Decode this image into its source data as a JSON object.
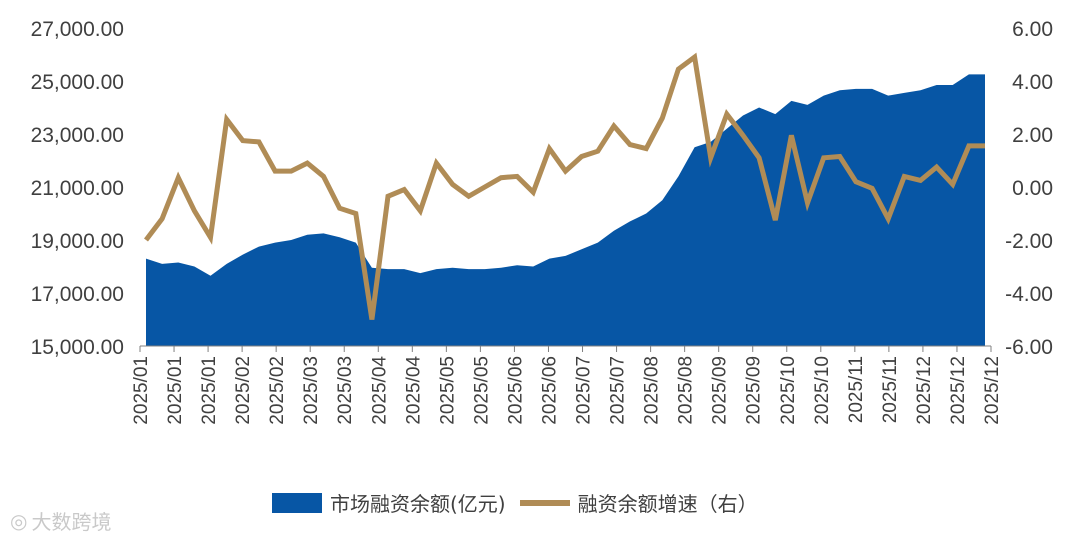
{
  "chart_data": {
    "type": "area+line",
    "colors": {
      "area": "#0756A5",
      "line": "#B08C56",
      "axis": "#808080",
      "text": "#404040"
    },
    "x_tick_labels": [
      "2025/01",
      "2025/01",
      "2025/01",
      "2025/02",
      "2025/02",
      "2025/03",
      "2025/03",
      "2025/04",
      "2025/04",
      "2025/05",
      "2025/05",
      "2025/06",
      "2025/06",
      "2025/07",
      "2025/07",
      "2025/08",
      "2025/08",
      "2025/09",
      "2025/09",
      "2025/10",
      "2025/10",
      "2025/11",
      "2025/11",
      "2025/12",
      "2025/12",
      "2025/12"
    ],
    "y_left": {
      "min": 15000,
      "max": 27000,
      "ticks": [
        "27,000.00",
        "25,000.00",
        "23,000.00",
        "21,000.00",
        "19,000.00",
        "17,000.00",
        "15,000.00"
      ]
    },
    "y_right": {
      "min": -6,
      "max": 6,
      "ticks": [
        "6.00",
        "4.00",
        "2.00",
        "0.00",
        "-2.00",
        "-4.00",
        "-6.00"
      ]
    },
    "series": [
      {
        "name": "市场融资余额(亿元)",
        "type": "area",
        "axis": "left",
        "values": [
          18300,
          18100,
          18150,
          18000,
          17650,
          18100,
          18450,
          18750,
          18900,
          19000,
          19200,
          19250,
          19100,
          18900,
          17950,
          17900,
          17900,
          17750,
          17900,
          17950,
          17900,
          17900,
          17950,
          18050,
          18000,
          18300,
          18400,
          18650,
          18900,
          19350,
          19700,
          20000,
          20500,
          21400,
          22500,
          22700,
          23200,
          23700,
          24000,
          23750,
          24250,
          24100,
          24450,
          24650,
          24700,
          24700,
          24450,
          24550,
          24650,
          24850,
          24850,
          25250,
          25250
        ]
      },
      {
        "name": "融资余额增速（右）",
        "type": "line",
        "axis": "right",
        "values": [
          -2.0,
          -1.2,
          0.35,
          -0.9,
          -1.9,
          2.55,
          1.75,
          1.7,
          0.6,
          0.6,
          0.9,
          0.4,
          -0.8,
          -1.0,
          -5.0,
          -0.35,
          -0.1,
          -0.9,
          0.9,
          0.1,
          -0.35,
          0.0,
          0.35,
          0.4,
          -0.2,
          1.45,
          0.6,
          1.15,
          1.35,
          2.3,
          1.6,
          1.45,
          2.6,
          4.45,
          4.9,
          1.1,
          2.75,
          1.95,
          1.1,
          -1.25,
          1.95,
          -0.6,
          1.1,
          1.15,
          0.2,
          -0.05,
          -1.2,
          0.4,
          0.25,
          0.75,
          0.1,
          1.55,
          1.55
        ]
      }
    ]
  },
  "legend": {
    "area_label": "市场融资余额(亿元)",
    "line_label": "融资余额增速（右）"
  },
  "watermark": {
    "icon": "brand-logo-icon",
    "text": "大数跨境"
  }
}
